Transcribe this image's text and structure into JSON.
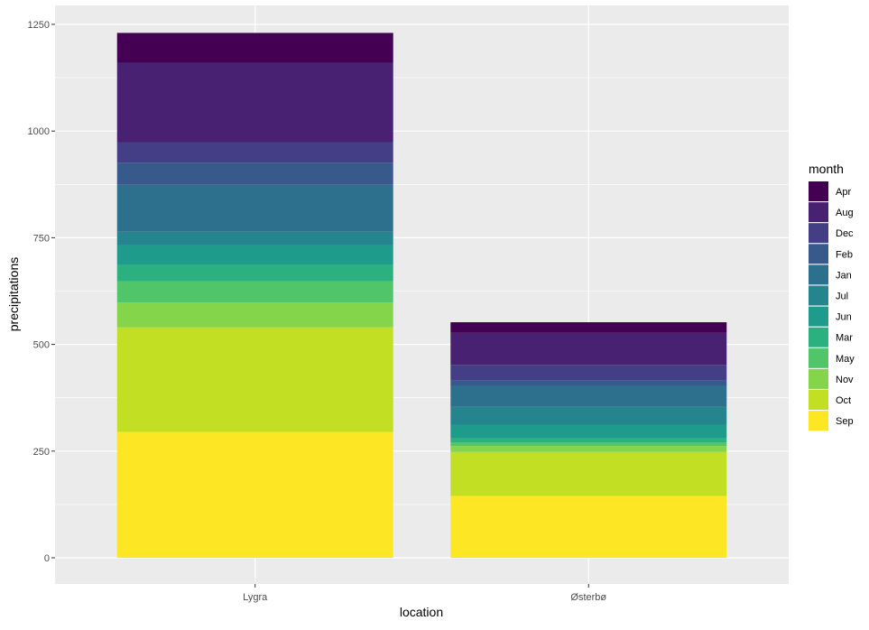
{
  "chart_data": {
    "type": "bar",
    "stacked": true,
    "title": "",
    "xlabel": "location",
    "ylabel": "precipitations",
    "ylim": [
      0,
      1300
    ],
    "yticks": [
      0,
      250,
      500,
      750,
      1000,
      1250
    ],
    "grid": true,
    "legend_position": "right",
    "legend_title": "month",
    "categories": [
      "Lygra",
      "Østerbø"
    ],
    "stack_order_bottom_to_top": [
      "Sep",
      "Oct",
      "Nov",
      "May",
      "Mar",
      "Jun",
      "Jul",
      "Jan",
      "Feb",
      "Dec",
      "Aug",
      "Apr"
    ],
    "series": [
      {
        "name": "Apr",
        "color": "#440154",
        "values": [
          70,
          25
        ]
      },
      {
        "name": "Aug",
        "color": "#482173",
        "values": [
          186,
          75
        ]
      },
      {
        "name": "Dec",
        "color": "#433E85",
        "values": [
          48,
          37
        ]
      },
      {
        "name": "Feb",
        "color": "#38598C",
        "values": [
          52,
          13
        ]
      },
      {
        "name": "Jan",
        "color": "#2D708E",
        "values": [
          110,
          48
        ]
      },
      {
        "name": "Jul",
        "color": "#25858E",
        "values": [
          32,
          42
        ]
      },
      {
        "name": "Jun",
        "color": "#1E9B8A",
        "values": [
          46,
          32
        ]
      },
      {
        "name": "Mar",
        "color": "#2BB07F",
        "values": [
          38,
          10
        ]
      },
      {
        "name": "May",
        "color": "#51C56A",
        "values": [
          50,
          8
        ]
      },
      {
        "name": "Nov",
        "color": "#85D54A",
        "values": [
          58,
          14
        ]
      },
      {
        "name": "Oct",
        "color": "#C2DF23",
        "values": [
          245,
          103
        ]
      },
      {
        "name": "Sep",
        "color": "#FDE725",
        "values": [
          295,
          145
        ]
      }
    ]
  }
}
